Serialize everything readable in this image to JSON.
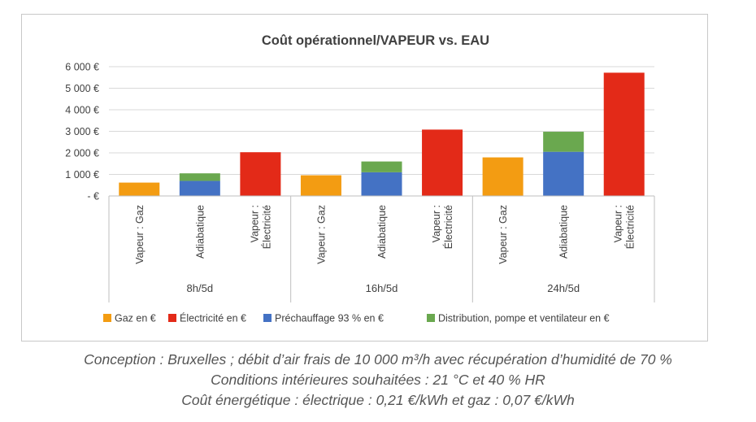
{
  "chart_data": {
    "type": "bar",
    "stacked": true,
    "title": "Coût opérationnel/VAPEUR vs. EAU",
    "ylim": [
      0,
      6000
    ],
    "yticks": [
      0,
      1000,
      2000,
      3000,
      4000,
      5000,
      6000
    ],
    "ytick_labels": [
      "-  €",
      "1 000 €",
      "2 000 €",
      "3 000 €",
      "4 000 €",
      "5 000 €",
      "6 000 €"
    ],
    "grid": true,
    "legend_position": "bottom",
    "groups": [
      "8h/5d",
      "16h/5d",
      "24h/5d"
    ],
    "categories": [
      [
        "Vapeur : Gaz"
      ],
      [
        "Adiabatique"
      ],
      [
        "Vapeur :",
        "Électricité"
      ],
      [
        "Vapeur : Gaz"
      ],
      [
        "Adiabatique"
      ],
      [
        "Vapeur :",
        "Électricité"
      ],
      [
        "Vapeur : Gaz"
      ],
      [
        "Adiabatique"
      ],
      [
        "Vapeur :",
        "Électricité"
      ]
    ],
    "series": [
      {
        "name": "Gaz en €",
        "color": "#f39c12",
        "values": [
          620,
          0,
          0,
          960,
          0,
          0,
          1790,
          0,
          0
        ]
      },
      {
        "name": "Électricité en €",
        "color": "#e32a18",
        "values": [
          0,
          0,
          2030,
          0,
          0,
          3080,
          0,
          0,
          5720
        ]
      },
      {
        "name": "Préchauffage 93 % en €",
        "color": "#4472c4",
        "values": [
          0,
          700,
          0,
          0,
          1100,
          0,
          0,
          2050,
          0
        ]
      },
      {
        "name": "Distribution, pompe et ventilateur en €",
        "color": "#6aa84f",
        "values": [
          0,
          350,
          0,
          0,
          500,
          0,
          0,
          930,
          0
        ]
      }
    ]
  },
  "caption": {
    "line1": "Conception : Bruxelles ; débit d’air frais de 10 000 m³/h avec récupération d’humidité de 70 %",
    "line2": "Conditions intérieures souhaitées : 21 °C et 40 % HR",
    "line3": "Coût énergétique : électrique : 0,21 €/kWh et gaz : 0,07 €/kWh"
  }
}
